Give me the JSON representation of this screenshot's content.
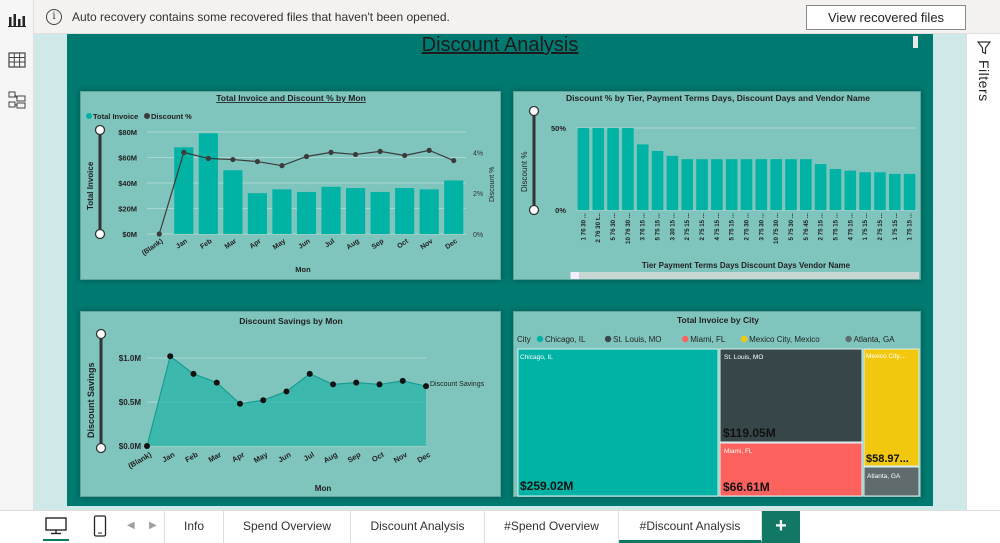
{
  "notification": {
    "message": "Auto recovery contains some recovered files that haven't been opened.",
    "button_label": "View recovered files"
  },
  "left_rail": {
    "icons": [
      "report-view-icon",
      "table-view-icon",
      "model-view-icon"
    ]
  },
  "filters": {
    "label": "Filters"
  },
  "page": {
    "title": "Discount Analysis"
  },
  "visual_invoice_discount": {
    "chart_data": {
      "type": "bar",
      "title": "Total Invoice and Discount % by Mon",
      "legend": [
        "Total Invoice",
        "Discount %"
      ],
      "legend_placement": "top-left",
      "xlabel": "Mon",
      "ylabel": "Total Invoice",
      "y2label": "Discount %",
      "categories": [
        "(Blank)",
        "Jan",
        "Feb",
        "Mar",
        "Apr",
        "May",
        "Jun",
        "Jul",
        "Aug",
        "Sep",
        "Oct",
        "Nov",
        "Dec"
      ],
      "y_ticks": [
        "$80M",
        "$60M",
        "$40M",
        "$20M",
        "$0M"
      ],
      "y2_ticks": [
        "4%",
        "2%",
        "0%"
      ],
      "ylim": [
        0,
        80
      ],
      "y2lim": [
        0,
        5
      ],
      "series": [
        {
          "name": "Total Invoice",
          "type": "bar",
          "values": [
            0,
            68,
            79,
            50,
            32,
            35,
            33,
            37,
            36,
            33,
            36,
            35,
            42
          ]
        },
        {
          "name": "Discount %",
          "type": "line",
          "values": [
            0,
            4.0,
            3.7,
            3.65,
            3.55,
            3.35,
            3.8,
            4.0,
            3.9,
            4.05,
            3.85,
            4.1,
            3.6
          ]
        }
      ]
    }
  },
  "visual_tier_discount": {
    "chart_data": {
      "type": "bar",
      "title": "Discount % by Tier, Payment Terms Days, Discount Days and Vendor Name",
      "xlabel": "Tier Payment Terms Days Discount Days Vendor Name",
      "ylabel": "Discount %",
      "y_ticks": [
        "50%",
        "0%"
      ],
      "ylim": [
        0,
        50
      ],
      "categories": [
        "1 76 30 ...",
        "2 76 30 t...",
        "5 76 30 ...",
        "10 76 30 ...",
        "3 76 15 ...",
        "5 75 15 ...",
        "3 30 15 ...",
        "2 75 15 ...",
        "2 75 15 ...",
        "4 75 15 ...",
        "5 75 15 ...",
        "2 75 30 ...",
        "3 75 30 ...",
        "10 75 30 ...",
        "5 75 30 ...",
        "5 76 45 ...",
        "2 75 15 ...",
        "5 75 15 ...",
        "4 75 15 ...",
        "1 75 15 ...",
        "2 75 15 ...",
        "1 75 15 ...",
        "1 75 15 ..."
      ],
      "values": [
        50,
        50,
        50,
        50,
        40,
        36,
        33,
        31,
        31,
        31,
        31,
        31,
        31,
        31,
        31,
        31,
        28,
        25,
        24,
        23,
        23,
        22,
        22
      ]
    }
  },
  "visual_savings": {
    "chart_data": {
      "type": "area",
      "title": "Discount Savings by Mon",
      "xlabel": "Mon",
      "ylabel": "Discount Savings",
      "series_label": "Discount Savings",
      "categories": [
        "(Blank)",
        "Jan",
        "Feb",
        "Mar",
        "Apr",
        "May",
        "Jun",
        "Jul",
        "Aug",
        "Sep",
        "Oct",
        "Nov",
        "Dec"
      ],
      "y_ticks": [
        "$1.0M",
        "$0.5M",
        "$0.0M"
      ],
      "ylim": [
        0,
        1.25
      ],
      "values": [
        0,
        1.02,
        0.82,
        0.72,
        0.48,
        0.52,
        0.62,
        0.82,
        0.7,
        0.72,
        0.7,
        0.74,
        0.68
      ]
    }
  },
  "visual_city": {
    "chart_data": {
      "type": "treemap",
      "title": "Total Invoice by City",
      "legend_title": "City",
      "items": [
        {
          "name": "Chicago, IL",
          "value": "$259.02M",
          "color": "#00b3a4"
        },
        {
          "name": "St. Louis, MO",
          "value": "$119.05M",
          "color": "#374649"
        },
        {
          "name": "Miami, FL",
          "value": "$66.61M",
          "color": "#fd625e"
        },
        {
          "name": "Mexico City, Mexico",
          "value": "$58.97...",
          "short": "Mexico City,...",
          "color": "#f2c80f"
        },
        {
          "name": "Atlanta, GA",
          "value": "",
          "color": "#5f6b6d"
        }
      ]
    }
  },
  "tabs": {
    "items": [
      "Info",
      "Spend Overview",
      "Discount Analysis",
      "#Spend Overview",
      "#Discount Analysis"
    ],
    "active": "#Discount Analysis",
    "add_label": "+"
  },
  "colors": {
    "teal": "#00b3a4",
    "dark_line": "#3b3b3b",
    "page_bg": "#007a70",
    "visual_bg": "#7fc5bd"
  }
}
